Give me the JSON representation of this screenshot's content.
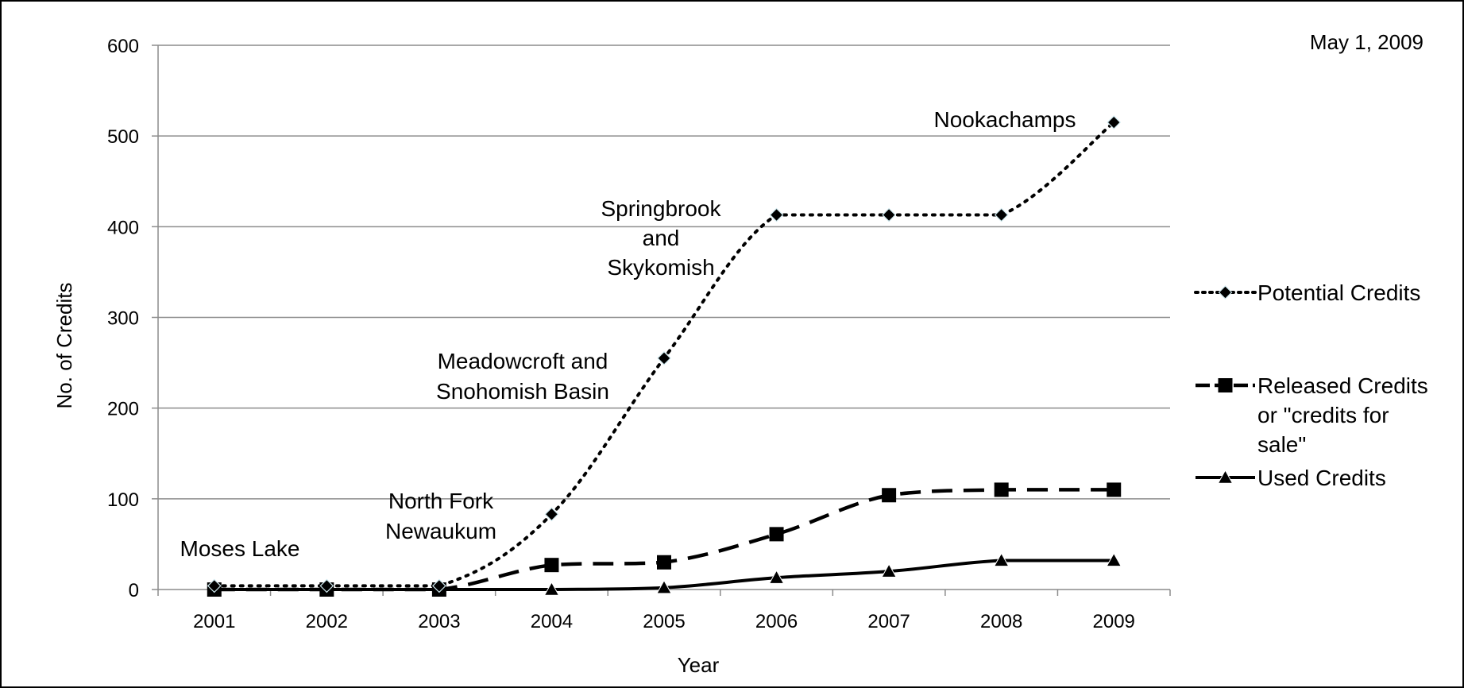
{
  "chart_data": {
    "type": "line",
    "date_note": "May 1, 2009",
    "xlabel": "Year",
    "ylabel": "No. of Credits",
    "categories": [
      "2001",
      "2002",
      "2003",
      "2004",
      "2005",
      "2006",
      "2007",
      "2008",
      "2009"
    ],
    "y_ticks": [
      "0",
      "100",
      "200",
      "300",
      "400",
      "500",
      "600"
    ],
    "ylim": [
      0,
      600
    ],
    "grid": true,
    "legend_position": "right",
    "series": [
      {
        "name": "Potential Credits",
        "legend_lines": [
          "Potential Credits"
        ],
        "style": "dotted",
        "marker": "diamond",
        "color": "#000000",
        "values": [
          4,
          4,
          4,
          83,
          255,
          413,
          413,
          413,
          515
        ]
      },
      {
        "name": "Released Credits or \"credits for sale\"",
        "legend_lines": [
          "Released Credits",
          "or \"credits for",
          "sale\""
        ],
        "style": "dashed",
        "marker": "square",
        "color": "#000000",
        "values": [
          0,
          0,
          0,
          27,
          30,
          61,
          104,
          110,
          110
        ]
      },
      {
        "name": "Used Credits",
        "legend_lines": [
          "Used Credits"
        ],
        "style": "solid",
        "marker": "triangle",
        "color": "#000000",
        "values": [
          0,
          0,
          0,
          0,
          2,
          13,
          20,
          32,
          32
        ]
      }
    ],
    "annotations": [
      {
        "lines": [
          "Moses Lake"
        ]
      },
      {
        "lines": [
          "North Fork",
          "Newaukum"
        ]
      },
      {
        "lines": [
          "Meadowcroft and",
          "Snohomish Basin"
        ]
      },
      {
        "lines": [
          "Springbrook",
          "and",
          "Skykomish"
        ]
      },
      {
        "lines": [
          "Nookachamps"
        ]
      }
    ]
  }
}
